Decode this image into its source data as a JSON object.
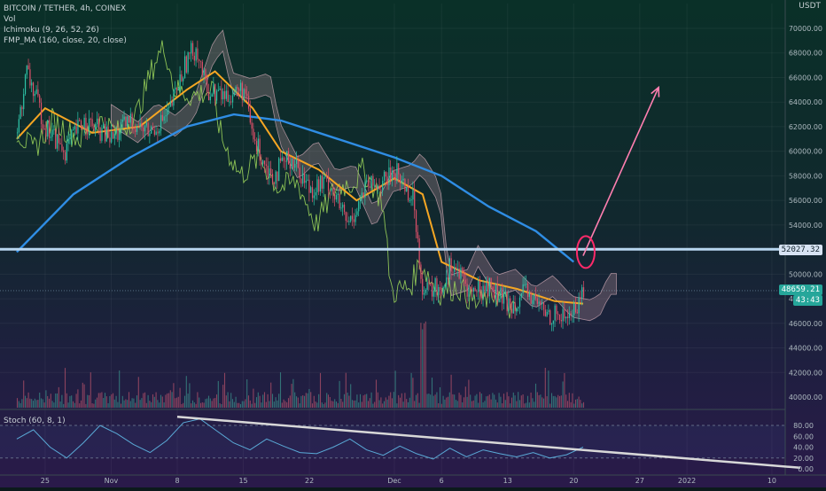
{
  "header": {
    "symbol_line": "BITCOIN / TETHER, 4h, COINEX",
    "vol_label": "Vol",
    "ichimoku_label": "Ichimoku (9, 26, 52, 26)",
    "ma_label": "FMP_MA (160, close, 20, close)",
    "currency_label": "USDT"
  },
  "badges": {
    "level": "52027.32",
    "price": "48659.21",
    "countdown": "43:43"
  },
  "stoch_label": "Stoch (60, 8, 1)",
  "colors": {
    "bg_top": "#0a3028",
    "bg_bottom": "#2a1a4a",
    "candle_up": "#2ec4a8",
    "candle_down": "#e0506a",
    "ma160": "#2f8de4",
    "ma20": "#f5a623",
    "tenkan": "#9ad35a",
    "level_line": "#b8d6f0",
    "arrow": "#ff7fb0",
    "circle": "#ff2a6a",
    "trendline": "#d8d8d8",
    "stoch": "#5aa9d6"
  },
  "chart_data": [
    {
      "type": "candlestick",
      "title": "BITCOIN / TETHER, 4h, COINEX",
      "x_labels": [
        "25",
        "Nov",
        "8",
        "15",
        "22",
        "Dec",
        "6",
        "13",
        "20",
        "27",
        "2022",
        "10"
      ],
      "y_ticks": [
        40000,
        42000,
        44000,
        46000,
        48000,
        50000,
        52000,
        54000,
        56000,
        58000,
        60000,
        62000,
        64000,
        66000,
        68000,
        70000
      ],
      "ylim": [
        39000,
        72000
      ],
      "horizontal_level": 52027.32,
      "last_price": 48659.21,
      "price_path": [
        {
          "x": "Oct 22",
          "y": 61500
        },
        {
          "x": "Oct 23",
          "y": 66500
        },
        {
          "x": "Oct 25",
          "y": 62000
        },
        {
          "x": "Oct 27",
          "y": 60000
        },
        {
          "x": "Oct 29",
          "y": 62500
        },
        {
          "x": "Nov 1",
          "y": 61000
        },
        {
          "x": "Nov 3",
          "y": 62500
        },
        {
          "x": "Nov 5",
          "y": 61500
        },
        {
          "x": "Nov 7",
          "y": 63000
        },
        {
          "x": "Nov 9",
          "y": 67500
        },
        {
          "x": "Nov 10",
          "y": 68500
        },
        {
          "x": "Nov 11",
          "y": 65000
        },
        {
          "x": "Nov 13",
          "y": 64500
        },
        {
          "x": "Nov 15",
          "y": 65000
        },
        {
          "x": "Nov 16",
          "y": 61000
        },
        {
          "x": "Nov 18",
          "y": 58000
        },
        {
          "x": "Nov 20",
          "y": 59500
        },
        {
          "x": "Nov 22",
          "y": 57000
        },
        {
          "x": "Nov 24",
          "y": 57500
        },
        {
          "x": "Nov 26",
          "y": 54000
        },
        {
          "x": "Nov 28",
          "y": 57000
        },
        {
          "x": "Nov 30",
          "y": 57500
        },
        {
          "x": "Dec 1",
          "y": 58500
        },
        {
          "x": "Dec 3",
          "y": 56000
        },
        {
          "x": "Dec 4",
          "y": 48500
        },
        {
          "x": "Dec 6",
          "y": 49000
        },
        {
          "x": "Dec 7",
          "y": 51000
        },
        {
          "x": "Dec 9",
          "y": 48500
        },
        {
          "x": "Dec 11",
          "y": 49000
        },
        {
          "x": "Dec 13",
          "y": 47500
        },
        {
          "x": "Dec 15",
          "y": 48500
        },
        {
          "x": "Dec 17",
          "y": 46800
        },
        {
          "x": "Dec 19",
          "y": 46500
        },
        {
          "x": "Dec 20",
          "y": 47000
        },
        {
          "x": "Dec 21",
          "y": 48659
        }
      ],
      "ma160_path": [
        {
          "x": "Oct 22",
          "y": 51800
        },
        {
          "x": "Oct 28",
          "y": 56500
        },
        {
          "x": "Nov 3",
          "y": 59500
        },
        {
          "x": "Nov 9",
          "y": 62000
        },
        {
          "x": "Nov 14",
          "y": 63000
        },
        {
          "x": "Nov 19",
          "y": 62500
        },
        {
          "x": "Nov 25",
          "y": 61000
        },
        {
          "x": "Dec 1",
          "y": 59500
        },
        {
          "x": "Dec 6",
          "y": 58000
        },
        {
          "x": "Dec 11",
          "y": 55500
        },
        {
          "x": "Dec 16",
          "y": 53500
        },
        {
          "x": "Dec 20",
          "y": 51000
        }
      ],
      "ma20_path": [
        {
          "x": "Oct 22",
          "y": 61000
        },
        {
          "x": "Oct 25",
          "y": 63500
        },
        {
          "x": "Oct 30",
          "y": 61500
        },
        {
          "x": "Nov 4",
          "y": 62000
        },
        {
          "x": "Nov 9",
          "y": 65000
        },
        {
          "x": "Nov 12",
          "y": 66500
        },
        {
          "x": "Nov 16",
          "y": 63500
        },
        {
          "x": "Nov 19",
          "y": 60000
        },
        {
          "x": "Nov 23",
          "y": 58500
        },
        {
          "x": "Nov 27",
          "y": 56000
        },
        {
          "x": "Dec 1",
          "y": 57800
        },
        {
          "x": "Dec 4",
          "y": 56500
        },
        {
          "x": "Dec 6",
          "y": 51000
        },
        {
          "x": "Dec 10",
          "y": 49500
        },
        {
          "x": "Dec 14",
          "y": 48800
        },
        {
          "x": "Dec 18",
          "y": 47800
        },
        {
          "x": "Dec 21",
          "y": 47600
        }
      ],
      "projection_arrow": {
        "from": {
          "x": "Dec 21",
          "y": 51500
        },
        "to": {
          "x": "Dec 29",
          "y": 65200
        }
      }
    },
    {
      "type": "line",
      "title": "Stoch (60, 8, 1)",
      "y_ticks": [
        0,
        20,
        40,
        60,
        80
      ],
      "ylim": [
        -5,
        100
      ],
      "bands": [
        20,
        80
      ],
      "values": [
        55,
        72,
        40,
        20,
        48,
        80,
        65,
        45,
        30,
        52,
        85,
        92,
        70,
        48,
        35,
        55,
        42,
        30,
        28,
        40,
        55,
        35,
        25,
        42,
        28,
        18,
        38,
        22,
        35,
        28,
        22,
        30,
        20,
        26,
        40
      ],
      "trendline": {
        "from": {
          "x": "Nov 8",
          "y": 96
        },
        "to": {
          "x": "Jan 13",
          "y": 2
        }
      }
    }
  ]
}
